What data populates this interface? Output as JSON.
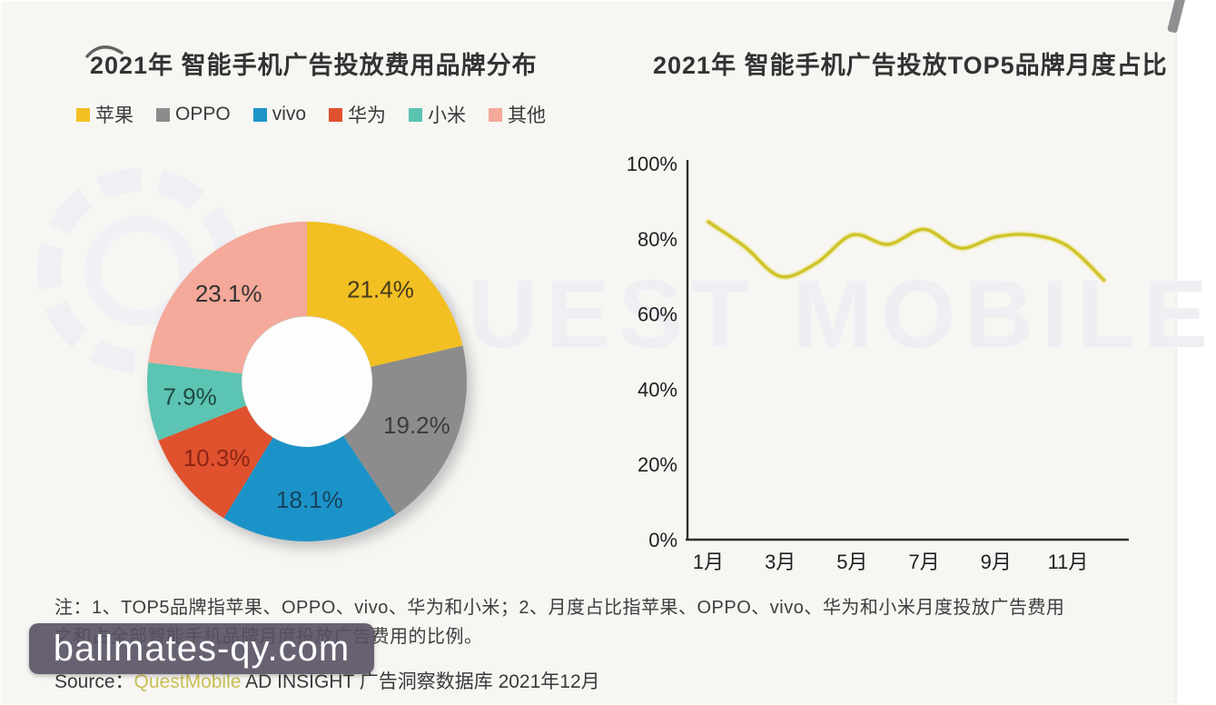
{
  "chart_data": [
    {
      "type": "pie",
      "subtype": "donut",
      "title": "2021年 智能手机广告投放费用品牌分布",
      "categories": [
        "苹果",
        "OPPO",
        "vivo",
        "华为",
        "小米",
        "其他"
      ],
      "values": [
        21.4,
        19.2,
        18.1,
        10.3,
        7.9,
        23.1
      ],
      "unit": "%",
      "colors": [
        "#F2C022",
        "#8C8C8C",
        "#1E93C8",
        "#E0512F",
        "#5BC4B2",
        "#F4A99A"
      ],
      "label_colors": [
        "#47391f",
        "#3c3c3c",
        "#17425e",
        "#8c2413",
        "#1d4a42",
        "#333333"
      ],
      "start_angle": "top",
      "direction": "clockwise",
      "hole_ratio": 0.41,
      "legend_position": "top-left"
    },
    {
      "type": "line",
      "title": "2021年 智能手机广告投放TOP5品牌月度占比",
      "x_months": [
        1,
        2,
        3,
        4,
        5,
        6,
        7,
        8,
        9,
        10,
        11,
        12
      ],
      "x_tick_months": [
        1,
        3,
        5,
        7,
        9,
        11
      ],
      "x_tick_labels": [
        "1月",
        "3月",
        "5月",
        "7月",
        "9月",
        "11月"
      ],
      "series": [
        {
          "values": [
            84.5,
            78,
            70,
            73.5,
            81,
            78.5,
            82.5,
            77.5,
            80.5,
            81,
            78,
            69
          ]
        }
      ],
      "ylim": [
        0,
        100
      ],
      "y_tick_values": [
        0,
        20,
        40,
        60,
        80,
        100
      ],
      "y_tick_labels": [
        "0%",
        "20%",
        "40%",
        "60%",
        "80%",
        "100%"
      ],
      "line_color": "#cfc32a",
      "line_glow_color": "#e9e37f",
      "grid": false
    }
  ],
  "notes": {
    "line1": "注：1、TOP5品牌指苹果、OPPO、vivo、华为和小米；2、月度占比指苹果、OPPO、vivo、华为和小米月度投放广告费用",
    "line2": "之和占全部智能手机品牌月度投放广告费用的比例。"
  },
  "source": {
    "label": "Source：",
    "brand": "QuestMobile",
    "brand_color": "#c9bf55",
    "rest": " AD INSIGHT 广告洞察数据库 2021年12月"
  },
  "watermarks": {
    "ghost_text": "QUEST MOBILE",
    "site_badge": "ballmates-qy.com",
    "badge_bg": "#575164"
  }
}
